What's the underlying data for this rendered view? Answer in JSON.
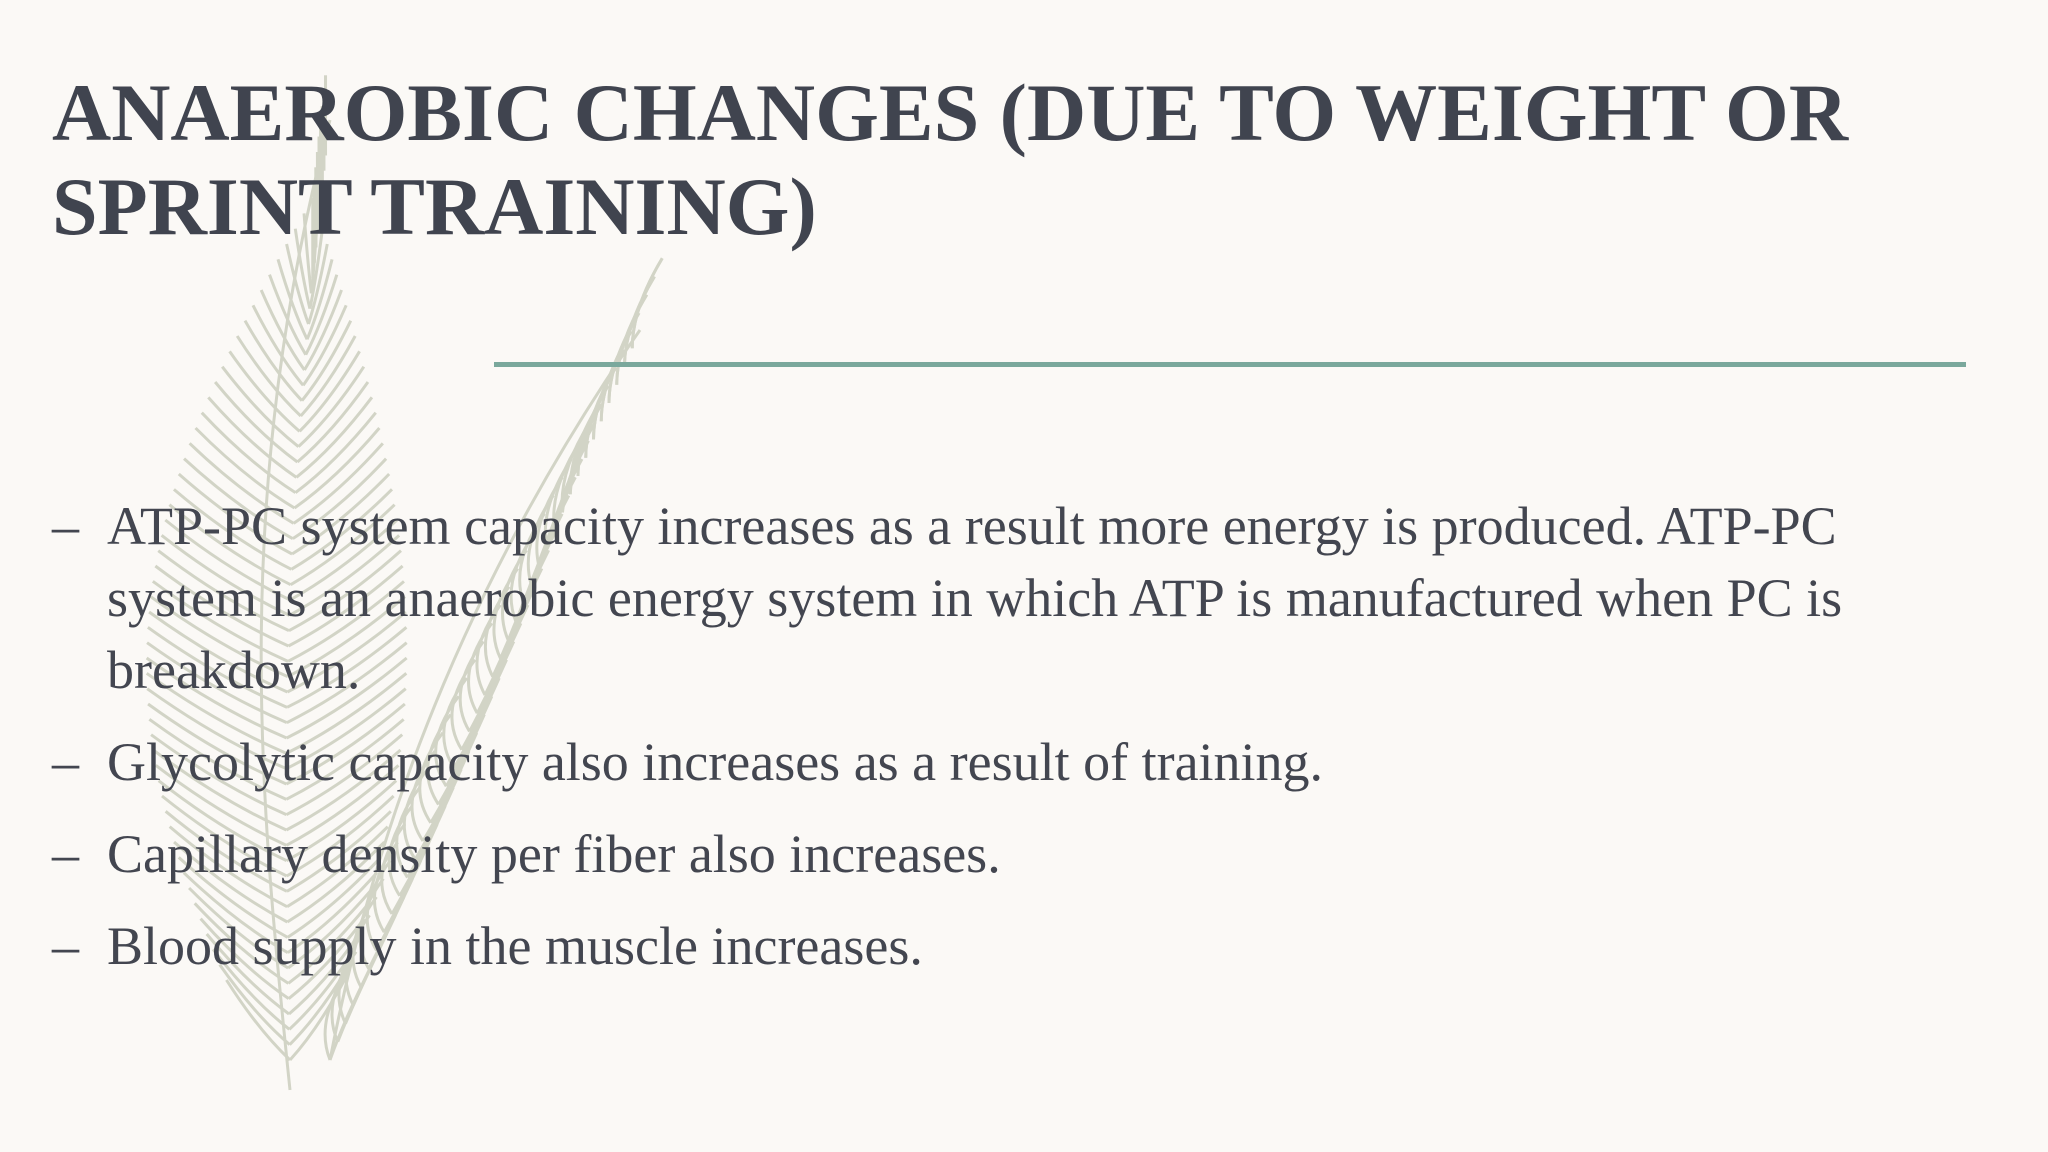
{
  "title": "ANAEROBIC CHANGES (DUE TO WEIGHT OR SPRINT TRAINING)",
  "bullets": [
    "ATP-PC system capacity increases as a result more energy is produced. ATP-PC system is an anaerobic energy system in which ATP is manufactured when PC is breakdown.",
    "Glycolytic capacity also increases as a result of training.",
    "Capillary density per fiber also increases.",
    "Blood supply in the muscle increases."
  ]
}
